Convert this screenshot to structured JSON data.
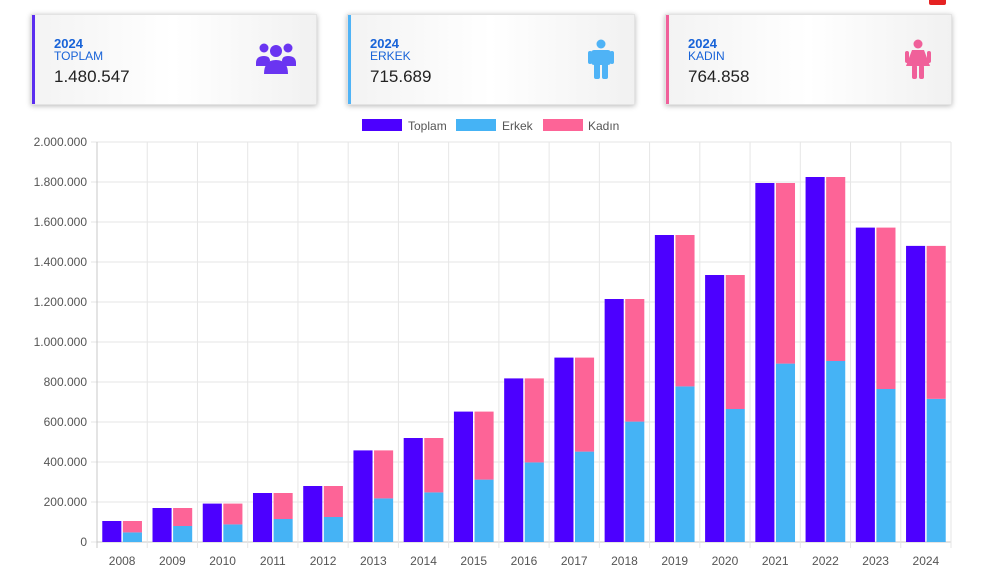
{
  "cards": [
    {
      "year": "2024",
      "label": "TOPLAM",
      "value": "1.480.547",
      "accent": "#5a2df0",
      "icon": "users-icon"
    },
    {
      "year": "2024",
      "label": "ERKEK",
      "value": "715.689",
      "accent": "#4fb3f6",
      "icon": "male-icon"
    },
    {
      "year": "2024",
      "label": "KADIN",
      "value": "764.858",
      "accent": "#f0609a",
      "icon": "female-icon"
    }
  ],
  "chart_data": {
    "type": "bar",
    "categories": [
      "2008",
      "2009",
      "2010",
      "2011",
      "2012",
      "2013",
      "2014",
      "2015",
      "2016",
      "2017",
      "2018",
      "2019",
      "2020",
      "2021",
      "2022",
      "2023",
      "2024"
    ],
    "series": [
      {
        "name": "Toplam",
        "color": "#4c00ff",
        "values": [
          105000,
          170000,
          192000,
          245000,
          280000,
          458000,
          520000,
          652000,
          818000,
          922000,
          1215000,
          1535000,
          1335000,
          1795000,
          1825000,
          1572000,
          1480547
        ]
      },
      {
        "name": "Erkek",
        "color": "#45b3f5",
        "stack": "gender",
        "values": [
          48000,
          80000,
          88000,
          115000,
          125000,
          218000,
          248000,
          312000,
          398000,
          452000,
          602000,
          778000,
          665000,
          892000,
          905000,
          765000,
          715689
        ]
      },
      {
        "name": "Kadın",
        "color": "#fd6497",
        "stack": "gender",
        "values": [
          57000,
          90000,
          104000,
          130000,
          155000,
          240000,
          272000,
          340000,
          420000,
          470000,
          613000,
          757000,
          670000,
          903000,
          920000,
          807000,
          764858
        ]
      }
    ],
    "yticks": [
      "0",
      "200.000",
      "400.000",
      "600.000",
      "800.000",
      "1.000.000",
      "1.200.000",
      "1.400.000",
      "1.600.000",
      "1.800.000",
      "2.000.000"
    ],
    "ylim": [
      0,
      2000000
    ],
    "legend_position": "top-center",
    "grid": true
  }
}
